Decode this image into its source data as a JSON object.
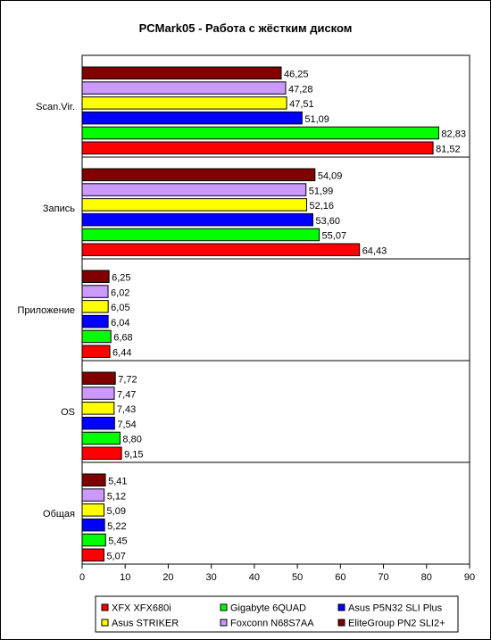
{
  "chart_data": {
    "type": "bar",
    "orientation": "horizontal",
    "title": "PCMark05 - Работа с жёстким диском",
    "xlabel": "",
    "ylabel": "",
    "xlim": [
      0,
      90
    ],
    "xticks": [
      0,
      10,
      20,
      30,
      40,
      50,
      60,
      70,
      80,
      90
    ],
    "grid": false,
    "legend_position": "bottom",
    "categories": [
      "Scan.Vir.",
      "Запись",
      "Приложение",
      "OS",
      "Общая"
    ],
    "series": [
      {
        "name": "EliteGroup PN2 SLI2+",
        "color": "#800000",
        "values": [
          46.25,
          54.09,
          6.25,
          7.72,
          5.41
        ],
        "labels": [
          "46,25",
          "54,09",
          "6,25",
          "7,72",
          "5,41"
        ]
      },
      {
        "name": "Foxconn N68S7AA",
        "color": "#cc99ff",
        "values": [
          47.28,
          51.99,
          6.02,
          7.47,
          5.12
        ],
        "labels": [
          "47,28",
          "51,99",
          "6,02",
          "7,47",
          "5,12"
        ]
      },
      {
        "name": "Asus STRIKER",
        "color": "#ffff00",
        "values": [
          47.51,
          52.16,
          6.05,
          7.43,
          5.09
        ],
        "labels": [
          "47,51",
          "52,16",
          "6,05",
          "7,43",
          "5,09"
        ]
      },
      {
        "name": "Asus P5N32 SLI Plus",
        "color": "#0000ff",
        "values": [
          51.09,
          53.6,
          6.04,
          7.54,
          5.22
        ],
        "labels": [
          "51,09",
          "53,60",
          "6,04",
          "7,54",
          "5,22"
        ]
      },
      {
        "name": "Gigabyte 6QUAD",
        "color": "#00ff00",
        "values": [
          82.83,
          55.07,
          6.68,
          8.8,
          5.45
        ],
        "labels": [
          "82,83",
          "55,07",
          "6,68",
          "8,80",
          "5,45"
        ]
      },
      {
        "name": "XFX XFX680i",
        "color": "#ff0000",
        "values": [
          81.52,
          64.43,
          6.44,
          9.15,
          5.07
        ],
        "labels": [
          "81,52",
          "64,43",
          "6,44",
          "9,15",
          "5,07"
        ]
      }
    ],
    "legend_order": [
      "XFX XFX680i",
      "Gigabyte 6QUAD",
      "Asus P5N32 SLI Plus",
      "Asus STRIKER",
      "Foxconn N68S7AA",
      "EliteGroup PN2 SLI2+"
    ]
  }
}
